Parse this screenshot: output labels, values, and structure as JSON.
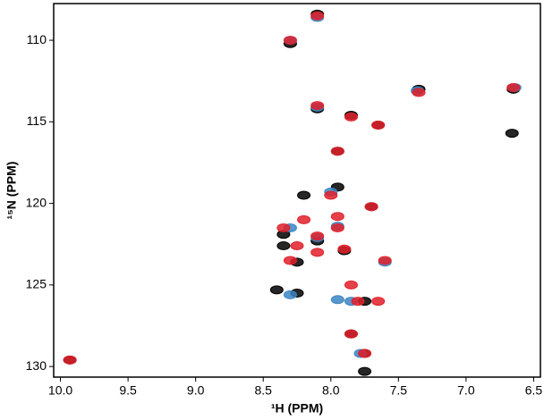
{
  "chart_data": {
    "type": "scatter",
    "xlabel": "¹H (PPM)",
    "ylabel": "¹⁵N (PPM)",
    "xlim": [
      10.05,
      6.45
    ],
    "ylim": [
      130.65,
      107.75
    ],
    "xticks": [
      {
        "value": 10,
        "label": "10.0"
      },
      9.5,
      {
        "value": 9,
        "label": "9.0"
      },
      8.5,
      {
        "value": 8,
        "label": "8.0"
      },
      7.5,
      {
        "value": 7,
        "label": "7.0"
      },
      6.5
    ],
    "yticks": [
      110,
      115,
      120,
      125,
      130
    ],
    "series": [
      {
        "color": "#000000",
        "x": [
          8.3,
          8.1,
          7.35,
          6.65,
          8.1,
          7.85,
          7.65,
          7.95,
          8.35,
          8.2,
          7.95,
          8.1,
          8.35,
          8.25,
          7.9,
          8.4,
          8.25,
          7.75,
          7.7,
          7.85,
          7.75,
          9.93,
          7.75,
          6.66
        ],
        "values": [
          110.2,
          108.4,
          113.0,
          113.0,
          114.2,
          114.6,
          115.2,
          116.8,
          121.9,
          119.5,
          119.0,
          122.3,
          122.6,
          123.6,
          122.9,
          125.3,
          125.5,
          126.0,
          120.2,
          128.0,
          129.2,
          129.6,
          130.3,
          115.7
        ]
      },
      {
        "color": "#3b86c4",
        "x": [
          8.3,
          8.1,
          7.36,
          6.64,
          8.1,
          8.3,
          8.0,
          8.1,
          7.95,
          8.3,
          7.95,
          7.85,
          7.78,
          7.6
        ],
        "values": [
          110.0,
          108.6,
          113.1,
          112.9,
          114.1,
          121.5,
          119.3,
          122.1,
          121.4,
          125.6,
          125.9,
          126.0,
          129.2,
          123.6
        ]
      },
      {
        "color": "#e0202a",
        "x": [
          8.3,
          8.1,
          7.35,
          6.65,
          8.1,
          7.85,
          7.65,
          7.95,
          8.2,
          8.0,
          8.1,
          8.3,
          7.9,
          8.1,
          7.7,
          7.6,
          7.85,
          7.8,
          7.65,
          7.85,
          7.75,
          9.93,
          8.35,
          7.95,
          8.25,
          7.95
        ],
        "values": [
          110.0,
          108.5,
          113.2,
          112.9,
          114.0,
          114.7,
          115.2,
          116.8,
          121.0,
          119.5,
          122.0,
          123.5,
          122.8,
          123.0,
          120.2,
          123.5,
          125.0,
          126.0,
          126.0,
          128.0,
          129.2,
          129.6,
          121.5,
          121.5,
          122.6,
          120.8
        ]
      }
    ]
  }
}
